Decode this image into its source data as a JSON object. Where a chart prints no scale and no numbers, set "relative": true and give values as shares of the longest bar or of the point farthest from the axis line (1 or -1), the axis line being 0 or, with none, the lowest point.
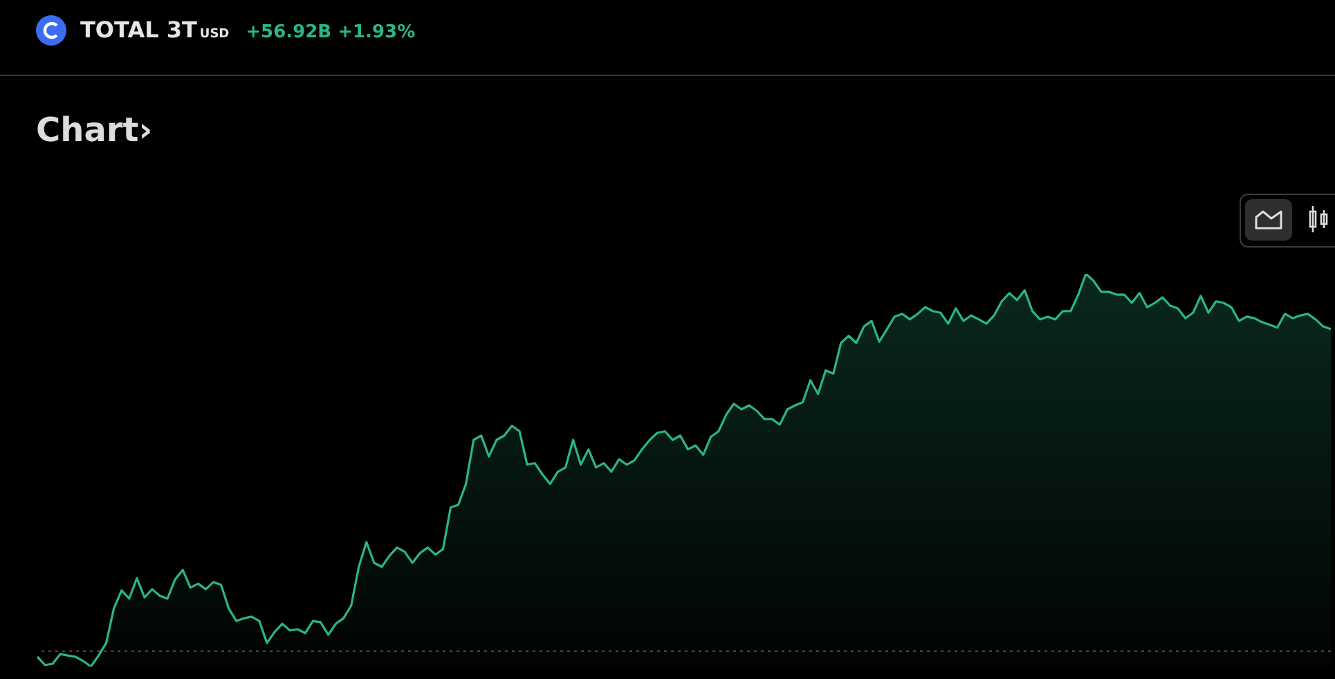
{
  "chart_data": {
    "type": "area",
    "title": "TOTAL 3T",
    "subtitle": "+56.92B +1.93%",
    "annotations": [
      "USD",
      "Chart›"
    ],
    "relative": true,
    "grid": false,
    "legend": false,
    "categories": [
      null,
      null,
      null,
      null,
      null,
      null,
      null,
      null,
      null,
      null,
      null,
      null,
      null,
      null,
      null,
      null,
      null,
      null,
      null,
      null,
      null,
      null,
      null,
      null,
      null,
      null,
      null,
      null,
      null,
      null,
      null,
      null,
      null,
      null,
      null,
      null,
      null,
      null,
      null,
      null,
      null,
      null,
      null,
      null,
      null,
      null,
      null,
      null,
      null,
      null,
      null,
      null,
      null,
      null,
      null,
      null,
      null,
      null,
      null,
      null,
      null,
      null,
      null,
      null,
      null,
      null,
      null,
      null,
      null,
      null,
      null,
      null,
      null,
      null,
      null,
      null,
      null,
      null,
      null,
      null,
      null,
      null,
      null,
      null,
      null,
      null,
      null,
      null,
      null,
      null,
      null,
      null,
      null,
      null,
      null,
      null,
      null,
      null,
      null,
      null,
      null,
      null,
      null,
      null,
      null,
      null,
      null,
      null,
      null,
      null,
      null,
      null,
      null,
      null,
      null,
      null,
      null,
      null,
      null,
      null,
      null,
      null,
      null,
      null,
      null,
      null,
      null,
      null,
      null,
      null,
      null,
      null,
      null,
      null,
      null,
      null,
      null,
      null,
      null,
      null,
      null,
      null,
      null,
      null,
      null,
      null,
      null,
      null,
      null,
      null,
      null,
      null,
      null,
      null,
      null,
      null,
      null,
      null,
      null,
      null,
      null,
      null,
      null,
      null,
      null,
      null,
      null,
      null,
      null,
      null
    ],
    "series": [
      {
        "color": "#2bb58a",
        "values": [
          0.025,
          0.004,
          0.007,
          0.032,
          0.028,
          0.025,
          0.014,
          0,
          0.028,
          0.06,
          0.148,
          0.194,
          0.173,
          0.225,
          0.176,
          0.197,
          0.18,
          0.173,
          0.222,
          0.246,
          0.201,
          0.211,
          0.197,
          0.215,
          0.208,
          0.148,
          0.116,
          0.123,
          0.127,
          0.116,
          0.06,
          0.088,
          0.109,
          0.092,
          0.095,
          0.085,
          0.116,
          0.113,
          0.081,
          0.109,
          0.123,
          0.155,
          0.254,
          0.317,
          0.264,
          0.254,
          0.282,
          0.303,
          0.292,
          0.264,
          0.289,
          0.303,
          0.285,
          0.299,
          0.405,
          0.412,
          0.465,
          0.577,
          0.588,
          0.535,
          0.577,
          0.588,
          0.613,
          0.599,
          0.514,
          0.518,
          0.489,
          0.465,
          0.496,
          0.507,
          0.577,
          0.514,
          0.553,
          0.507,
          0.518,
          0.496,
          0.528,
          0.514,
          0.525,
          0.553,
          0.577,
          0.595,
          0.599,
          0.577,
          0.588,
          0.553,
          0.563,
          0.539,
          0.585,
          0.599,
          0.641,
          0.669,
          0.655,
          0.665,
          0.651,
          0.63,
          0.63,
          0.616,
          0.655,
          0.665,
          0.673,
          0.729,
          0.694,
          0.754,
          0.746,
          0.824,
          0.842,
          0.824,
          0.866,
          0.88,
          0.827,
          0.859,
          0.891,
          0.898,
          0.884,
          0.898,
          0.915,
          0.905,
          0.901,
          0.873,
          0.912,
          0.88,
          0.894,
          0.884,
          0.873,
          0.894,
          0.93,
          0.951,
          0.933,
          0.958,
          0.905,
          0.884,
          0.891,
          0.884,
          0.905,
          0.905,
          0.947,
          1,
          0.982,
          0.954,
          0.954,
          0.947,
          0.947,
          0.926,
          0.951,
          0.915,
          0.926,
          0.94,
          0.919,
          0.912,
          0.887,
          0.901,
          0.944,
          0.901,
          0.93,
          0.926,
          0.915,
          0.88,
          0.891,
          0.887,
          0.877,
          0.87,
          0.863,
          0.898,
          0.887,
          0.894,
          0.898,
          0.884,
          0.866,
          0.859
        ]
      }
    ],
    "ref_lines": [
      {
        "axis": "y",
        "value": 0.039,
        "color": "#555555",
        "line_style": "dotted"
      }
    ]
  }
}
